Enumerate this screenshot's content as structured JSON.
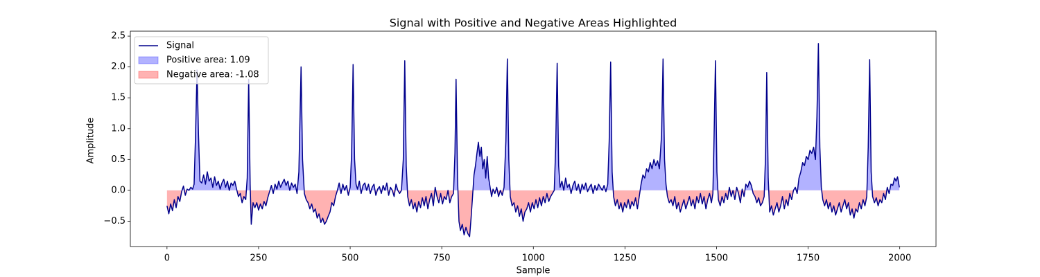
{
  "chart_data": {
    "type": "line",
    "title": "Signal with Positive and Negative Areas Highlighted",
    "xlabel": "Sample",
    "ylabel": "Amplitude",
    "xlim": [
      -100,
      2099
    ],
    "ylim": [
      -0.91,
      2.58
    ],
    "xticks": [
      0,
      250,
      500,
      750,
      1000,
      1250,
      1500,
      1750,
      2000
    ],
    "yticks": [
      {
        "value": -0.5,
        "label": "−0.5"
      },
      {
        "value": 0,
        "label": "0.0"
      },
      0.5,
      {
        "value": 1,
        "label": "1.0"
      },
      1.5,
      {
        "value": 2,
        "label": "2.0"
      },
      2.5
    ],
    "legend": "upper left",
    "x": [
      0,
      5,
      10,
      15,
      20,
      25,
      30,
      35,
      40,
      45,
      50,
      55,
      60,
      65,
      70,
      74,
      78,
      82,
      86,
      90,
      95,
      100,
      105,
      110,
      115,
      120,
      125,
      130,
      135,
      140,
      145,
      150,
      155,
      160,
      165,
      170,
      175,
      180,
      185,
      190,
      195,
      200,
      205,
      210,
      215,
      219,
      223,
      227,
      230,
      235,
      240,
      245,
      250,
      255,
      260,
      265,
      270,
      275,
      280,
      285,
      290,
      295,
      300,
      305,
      310,
      315,
      320,
      325,
      330,
      335,
      340,
      345,
      350,
      355,
      360,
      366,
      370,
      375,
      380,
      385,
      390,
      395,
      400,
      405,
      410,
      415,
      420,
      425,
      430,
      435,
      440,
      445,
      450,
      455,
      460,
      465,
      470,
      475,
      480,
      485,
      490,
      495,
      500,
      504,
      508,
      512,
      516,
      520,
      525,
      530,
      535,
      540,
      545,
      550,
      555,
      560,
      565,
      570,
      575,
      580,
      585,
      590,
      595,
      600,
      605,
      610,
      615,
      620,
      625,
      630,
      635,
      640,
      645,
      649,
      653,
      657,
      662,
      667,
      672,
      677,
      682,
      687,
      692,
      697,
      702,
      707,
      712,
      717,
      722,
      727,
      732,
      737,
      742,
      747,
      752,
      757,
      762,
      767,
      772,
      777,
      782,
      786,
      789,
      793,
      797,
      801,
      806,
      811,
      816,
      821,
      826,
      830,
      834,
      838,
      842,
      846,
      850,
      854,
      858,
      862,
      866,
      870,
      874,
      878,
      882,
      886,
      890,
      895,
      900,
      905,
      910,
      915,
      920,
      925,
      929,
      933,
      937,
      942,
      947,
      952,
      957,
      962,
      967,
      972,
      977,
      982,
      987,
      992,
      997,
      1002,
      1007,
      1012,
      1017,
      1022,
      1027,
      1032,
      1037,
      1042,
      1047,
      1052,
      1057,
      1061,
      1065,
      1069,
      1073,
      1078,
      1083,
      1088,
      1093,
      1098,
      1103,
      1108,
      1113,
      1118,
      1123,
      1128,
      1133,
      1138,
      1143,
      1148,
      1153,
      1158,
      1163,
      1168,
      1173,
      1178,
      1183,
      1188,
      1193,
      1198,
      1203,
      1207,
      1211,
      1215,
      1219,
      1224,
      1229,
      1234,
      1239,
      1244,
      1249,
      1254,
      1259,
      1264,
      1269,
      1274,
      1279,
      1284,
      1289,
      1294,
      1299,
      1304,
      1309,
      1314,
      1319,
      1324,
      1329,
      1334,
      1339,
      1344,
      1350,
      1354,
      1358,
      1362,
      1366,
      1371,
      1376,
      1381,
      1386,
      1391,
      1396,
      1401,
      1406,
      1411,
      1416,
      1421,
      1426,
      1431,
      1436,
      1441,
      1446,
      1451,
      1456,
      1461,
      1466,
      1471,
      1476,
      1481,
      1486,
      1490,
      1493,
      1497,
      1501,
      1505,
      1510,
      1515,
      1520,
      1525,
      1530,
      1535,
      1540,
      1545,
      1550,
      1555,
      1560,
      1565,
      1570,
      1575,
      1580,
      1585,
      1590,
      1595,
      1600,
      1605,
      1610,
      1615,
      1620,
      1625,
      1630,
      1634,
      1637,
      1641,
      1645,
      1650,
      1655,
      1660,
      1665,
      1670,
      1675,
      1680,
      1685,
      1690,
      1695,
      1700,
      1705,
      1710,
      1715,
      1720,
      1725,
      1730,
      1735,
      1740,
      1745,
      1750,
      1755,
      1760,
      1765,
      1770,
      1774,
      1778,
      1782,
      1786,
      1790,
      1795,
      1800,
      1805,
      1810,
      1815,
      1820,
      1825,
      1830,
      1835,
      1840,
      1845,
      1850,
      1855,
      1860,
      1865,
      1870,
      1875,
      1880,
      1885,
      1890,
      1895,
      1900,
      1905,
      1910,
      1914,
      1918,
      1922,
      1926,
      1931,
      1936,
      1941,
      1946,
      1951,
      1956,
      1961,
      1966,
      1971,
      1976,
      1981,
      1986,
      1990,
      1994,
      1999
    ],
    "series": [
      {
        "name": "Signal",
        "color": "#00008b",
        "values": [
          -0.25,
          -0.38,
          -0.22,
          -0.33,
          -0.15,
          -0.28,
          -0.1,
          -0.18,
          -0.02,
          0.07,
          -0.08,
          0.02,
          0.0,
          0.05,
          0.02,
          0.1,
          0.9,
          1.95,
          0.9,
          0.15,
          0.12,
          0.25,
          0.1,
          0.3,
          0.15,
          0.2,
          0.05,
          0.22,
          0.08,
          0.15,
          0.02,
          0.12,
          0.18,
          0.05,
          0.15,
          0.0,
          0.12,
          0.08,
          0.15,
          0.02,
          -0.1,
          -0.05,
          -0.2,
          -0.1,
          -0.15,
          0.2,
          1.8,
          0.1,
          -0.55,
          -0.2,
          -0.28,
          -0.2,
          -0.32,
          -0.22,
          -0.3,
          -0.18,
          -0.25,
          -0.12,
          -0.02,
          0.08,
          -0.05,
          0.1,
          0.02,
          0.15,
          0.05,
          0.12,
          0.18,
          0.08,
          0.15,
          0.0,
          0.12,
          0.05,
          0.1,
          -0.05,
          0.3,
          2.0,
          0.5,
          -0.05,
          -0.15,
          -0.2,
          -0.3,
          -0.22,
          -0.35,
          -0.3,
          -0.45,
          -0.38,
          -0.52,
          -0.45,
          -0.55,
          -0.5,
          -0.42,
          -0.35,
          -0.2,
          -0.25,
          -0.1,
          0.0,
          0.12,
          -0.05,
          0.1,
          0.0,
          0.08,
          -0.08,
          0.05,
          0.6,
          2.04,
          0.5,
          0.1,
          0.02,
          0.15,
          -0.05,
          0.08,
          0.12,
          0.0,
          0.1,
          -0.05,
          0.05,
          0.1,
          -0.08,
          0.02,
          0.06,
          -0.05,
          0.08,
          0.0,
          0.12,
          -0.08,
          0.05,
          0.0,
          -0.1,
          0.1,
          0.0,
          -0.05,
          0.0,
          0.5,
          2.1,
          0.4,
          -0.1,
          -0.25,
          -0.15,
          -0.3,
          -0.2,
          -0.35,
          -0.18,
          -0.28,
          -0.12,
          -0.25,
          -0.1,
          -0.3,
          -0.15,
          -0.05,
          -0.25,
          0.05,
          -0.1,
          -0.2,
          -0.05,
          -0.22,
          -0.1,
          -0.15,
          0.0,
          -0.2,
          -0.1,
          -0.05,
          0.6,
          1.8,
          0.2,
          -0.5,
          -0.65,
          -0.55,
          -0.72,
          -0.6,
          -0.7,
          -0.75,
          -0.45,
          -0.1,
          0.25,
          0.4,
          0.6,
          0.78,
          0.55,
          0.7,
          0.35,
          0.5,
          0.2,
          0.55,
          0.2,
          0.05,
          -0.1,
          0.02,
          -0.05,
          0.05,
          -0.1,
          0.0,
          -0.08,
          0.05,
          0.8,
          2.13,
          0.5,
          -0.1,
          -0.25,
          -0.2,
          -0.35,
          -0.25,
          -0.42,
          -0.3,
          -0.5,
          -0.35,
          -0.3,
          -0.2,
          -0.35,
          -0.2,
          -0.3,
          -0.15,
          -0.28,
          -0.12,
          -0.25,
          -0.1,
          -0.2,
          -0.05,
          -0.18,
          -0.1,
          -0.05,
          0.0,
          0.7,
          2.06,
          0.4,
          0.05,
          0.15,
          0.0,
          0.2,
          0.05,
          0.1,
          -0.05,
          0.08,
          0.15,
          0.0,
          0.1,
          -0.05,
          0.1,
          0.02,
          0.12,
          -0.02,
          0.05,
          0.1,
          -0.05,
          0.08,
          0.0,
          0.1,
          0.05,
          0.0,
          0.08,
          -0.02,
          0.1,
          0.8,
          2.08,
          0.3,
          -0.1,
          -0.25,
          -0.15,
          -0.3,
          -0.2,
          -0.35,
          -0.2,
          -0.28,
          -0.15,
          -0.3,
          -0.18,
          -0.25,
          -0.12,
          -0.3,
          -0.1,
          0.1,
          0.25,
          0.2,
          0.35,
          0.3,
          0.45,
          0.35,
          0.5,
          0.4,
          0.48,
          0.35,
          0.9,
          2.13,
          0.5,
          0.1,
          -0.1,
          -0.2,
          -0.15,
          -0.25,
          -0.1,
          -0.3,
          -0.2,
          -0.35,
          -0.25,
          -0.15,
          -0.3,
          -0.2,
          -0.1,
          -0.25,
          -0.15,
          -0.3,
          -0.1,
          -0.2,
          -0.05,
          -0.22,
          -0.1,
          -0.3,
          -0.15,
          -0.05,
          -0.2,
          -0.05,
          0.8,
          2.1,
          0.3,
          -0.15,
          -0.25,
          -0.1,
          -0.2,
          -0.05,
          -0.15,
          0.05,
          -0.1,
          0.0,
          -0.15,
          0.05,
          -0.05,
          -0.2,
          0.02,
          -0.1,
          0.1,
          0.05,
          0.15,
          0.08,
          -0.05,
          -0.1,
          -0.2,
          -0.12,
          -0.25,
          -0.2,
          -0.1,
          0.6,
          1.91,
          0.2,
          -0.35,
          -0.25,
          -0.4,
          -0.3,
          -0.2,
          -0.35,
          -0.25,
          -0.1,
          -0.3,
          -0.15,
          -0.25,
          -0.05,
          -0.15,
          0.0,
          0.05,
          -0.05,
          0.2,
          0.3,
          0.45,
          0.4,
          0.55,
          0.5,
          0.65,
          0.6,
          0.7,
          0.5,
          1.2,
          2.38,
          0.7,
          0.05,
          -0.15,
          -0.25,
          -0.15,
          -0.3,
          -0.2,
          -0.35,
          -0.25,
          -0.4,
          -0.3,
          -0.2,
          -0.35,
          -0.25,
          -0.15,
          -0.3,
          -0.2,
          -0.4,
          -0.3,
          -0.45,
          -0.3,
          -0.35,
          -0.2,
          -0.3,
          -0.15,
          -0.25,
          -0.1,
          0.7,
          2.12,
          0.3,
          -0.1,
          -0.2,
          -0.12,
          -0.25,
          -0.15,
          -0.2,
          -0.05,
          -0.15,
          0.05,
          -0.05,
          0.1,
          0.08,
          0.2,
          0.15,
          0.22,
          0.05
        ]
      }
    ],
    "fills": [
      {
        "name": "Positive area: 1.09",
        "color": "blue",
        "alpha": 0.3,
        "where": "above"
      },
      {
        "name": "Negative area: -1.08",
        "color": "red",
        "alpha": 0.3,
        "where": "below"
      }
    ]
  }
}
